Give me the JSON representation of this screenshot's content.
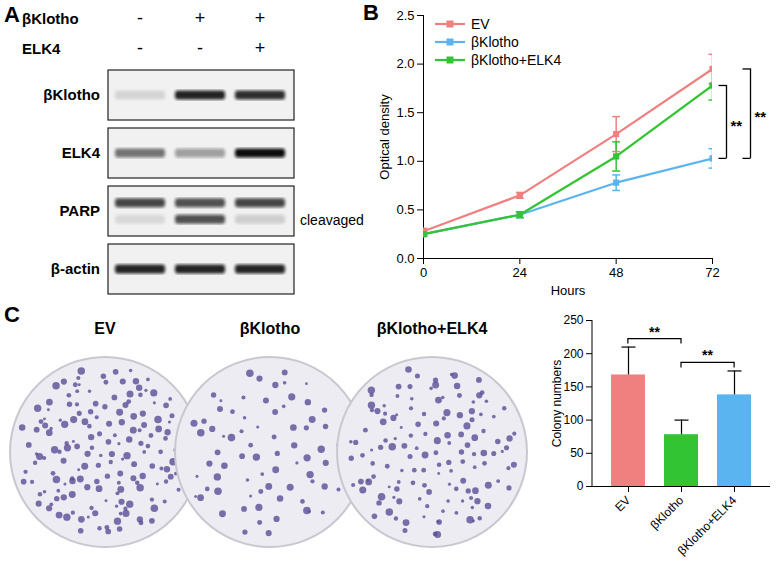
{
  "panel_labels": [
    "A",
    "B",
    "C"
  ],
  "blot": {
    "conditions": [
      {
        "label": "βKlotho",
        "signs": [
          "-",
          "+",
          "+"
        ]
      },
      {
        "label": "ELK4",
        "signs": [
          "-",
          "-",
          "+"
        ]
      }
    ],
    "rows": [
      {
        "label": "βKlotho",
        "bands": [
          [
            0.12,
            0.9,
            0.85
          ]
        ]
      },
      {
        "label": "ELK4",
        "bands": [
          [
            0.55,
            0.35,
            1.0
          ]
        ]
      },
      {
        "label": "PARP",
        "band_label": "cleavaged",
        "bands": [
          [
            0.75,
            0.7,
            0.75
          ],
          [
            0.1,
            0.7,
            0.15
          ]
        ]
      },
      {
        "label": "β-actin",
        "bands": [
          [
            0.9,
            0.9,
            0.9
          ]
        ]
      }
    ]
  },
  "plates": {
    "labels": [
      "EV",
      "βKlotho",
      "βKlotho+ELK4"
    ]
  },
  "chart_data": [
    {
      "type": "line",
      "x": [
        0,
        24,
        48,
        72
      ],
      "xlim": [
        0,
        72
      ],
      "xticks": [
        0,
        24,
        48,
        72
      ],
      "ylim": [
        0,
        2.5
      ],
      "yticks": [
        {
          "value": 0,
          "label": "0.0"
        },
        {
          "value": 0.5,
          "label": "0.5"
        },
        {
          "value": 1,
          "label": "1.0"
        },
        {
          "value": 1.5,
          "label": "1.5"
        },
        {
          "value": 2,
          "label": "2.0"
        },
        {
          "value": 2.5,
          "label": "2.5"
        }
      ],
      "x_label": "Hours",
      "y_label": "Optical density",
      "legend": "top-left",
      "marker": "square",
      "series": [
        {
          "name": "EV",
          "color": "#f08080",
          "values": [
            0.28,
            0.65,
            1.28,
            1.95
          ],
          "errors": [
            0.03,
            0.03,
            0.18,
            0.15
          ]
        },
        {
          "name": "βKlotho",
          "color": "#5ab4f0",
          "values": [
            0.25,
            0.45,
            0.78,
            1.03
          ],
          "errors": [
            0.02,
            0.03,
            0.08,
            0.1
          ]
        },
        {
          "name": "βKlotho+ELK4",
          "color": "#33c433",
          "values": [
            0.25,
            0.45,
            1.05,
            1.78
          ],
          "errors": [
            0.02,
            0.03,
            0.15,
            0.15
          ]
        }
      ],
      "annotations": [
        {
          "text": "**",
          "between": [
            "βKlotho",
            "βKlotho+ELK4"
          ]
        },
        {
          "text": "**",
          "between": [
            "βKlotho",
            "EV"
          ]
        }
      ]
    },
    {
      "type": "bar",
      "categories": [
        "EV",
        "βKlotho",
        "βKlotho+ELK4"
      ],
      "values": [
        168,
        78,
        138
      ],
      "errors": [
        42,
        22,
        36
      ],
      "colors": [
        "#f08080",
        "#33c433",
        "#5ab4f0"
      ],
      "ylim": [
        0,
        250
      ],
      "yticks": [
        0,
        50,
        100,
        150,
        200,
        250
      ],
      "y_label": "Colony numbers",
      "annotations": [
        {
          "text": "**",
          "between": [
            "EV",
            "βKlotho"
          ]
        },
        {
          "text": "**",
          "between": [
            "βKlotho",
            "βKlotho+ELK4"
          ]
        }
      ]
    }
  ]
}
